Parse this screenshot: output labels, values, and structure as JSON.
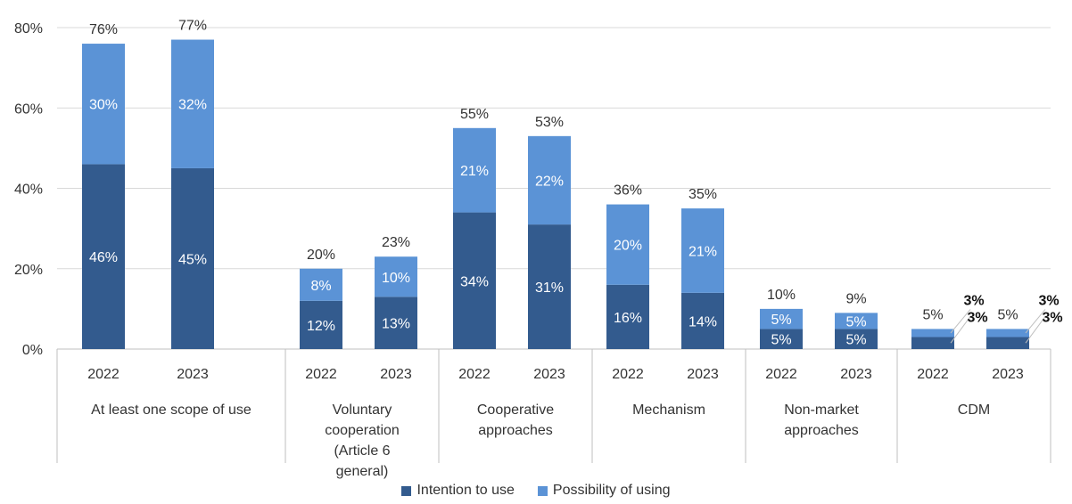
{
  "chart_data": {
    "type": "bar",
    "stacked": true,
    "ylim": [
      0,
      80
    ],
    "yticks": [
      "0%",
      "20%",
      "40%",
      "60%",
      "80%"
    ],
    "grid": true,
    "legend_position": "bottom",
    "colors": {
      "intention": "#335b8e",
      "possibility": "#5b93d6"
    },
    "legend": [
      "Intention to use",
      "Possibility of using"
    ],
    "groups": [
      {
        "label": "At least one scope of use",
        "bars": [
          {
            "year": "2022",
            "intention": 46,
            "possibility": 30,
            "total": 76,
            "intention_label": "46%",
            "possibility_label": "30%",
            "total_label": "76%"
          },
          {
            "year": "2023",
            "intention": 45,
            "possibility": 32,
            "total": 77,
            "intention_label": "45%",
            "possibility_label": "32%",
            "total_label": "77%"
          }
        ]
      },
      {
        "label": "Voluntary cooperation (Article 6 general)",
        "bars": [
          {
            "year": "2022",
            "intention": 12,
            "possibility": 8,
            "total": 20,
            "intention_label": "12%",
            "possibility_label": "8%",
            "total_label": "20%"
          },
          {
            "year": "2023",
            "intention": 13,
            "possibility": 10,
            "total": 23,
            "intention_label": "13%",
            "possibility_label": "10%",
            "total_label": "23%"
          }
        ]
      },
      {
        "label": "Cooperative approaches",
        "bars": [
          {
            "year": "2022",
            "intention": 34,
            "possibility": 21,
            "total": 55,
            "intention_label": "34%",
            "possibility_label": "21%",
            "total_label": "55%"
          },
          {
            "year": "2023",
            "intention": 31,
            "possibility": 22,
            "total": 53,
            "intention_label": "31%",
            "possibility_label": "22%",
            "total_label": "53%"
          }
        ]
      },
      {
        "label": "Mechanism",
        "bars": [
          {
            "year": "2022",
            "intention": 16,
            "possibility": 20,
            "total": 36,
            "intention_label": "16%",
            "possibility_label": "20%",
            "total_label": "36%"
          },
          {
            "year": "2023",
            "intention": 14,
            "possibility": 21,
            "total": 35,
            "intention_label": "14%",
            "possibility_label": "21%",
            "total_label": "35%"
          }
        ]
      },
      {
        "label": "Non-market approaches",
        "bars": [
          {
            "year": "2022",
            "intention": 5,
            "possibility": 5,
            "total": 10,
            "intention_label": "5%",
            "possibility_label": "5%",
            "total_label": "10%"
          },
          {
            "year": "2023",
            "intention": 5,
            "possibility": 5,
            "total": 9,
            "intention_label": "5%",
            "possibility_label": "5%",
            "total_label": "9%"
          }
        ]
      },
      {
        "label": "CDM",
        "bars": [
          {
            "year": "2022",
            "intention": 3,
            "possibility": 3,
            "total": 5,
            "intention_label": "3%",
            "possibility_label": "3%",
            "total_label": "5%"
          },
          {
            "year": "2023",
            "intention": 3,
            "possibility": 3,
            "total": 5,
            "intention_label": "3%",
            "possibility_label": "3%",
            "total_label": "5%"
          }
        ]
      }
    ]
  }
}
